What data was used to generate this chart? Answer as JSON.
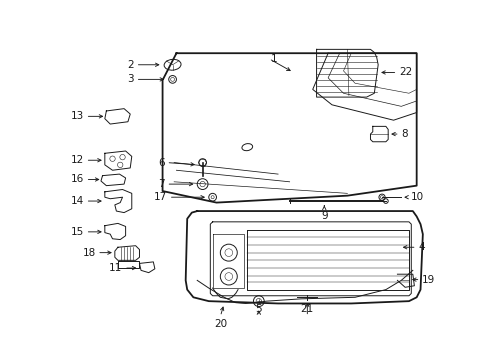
{
  "background_color": "#ffffff",
  "line_color": "#1a1a1a",
  "label_color": "#000000",
  "lw_main": 1.3,
  "lw_thin": 0.7,
  "lw_hair": 0.4,
  "fontsize": 7.5
}
